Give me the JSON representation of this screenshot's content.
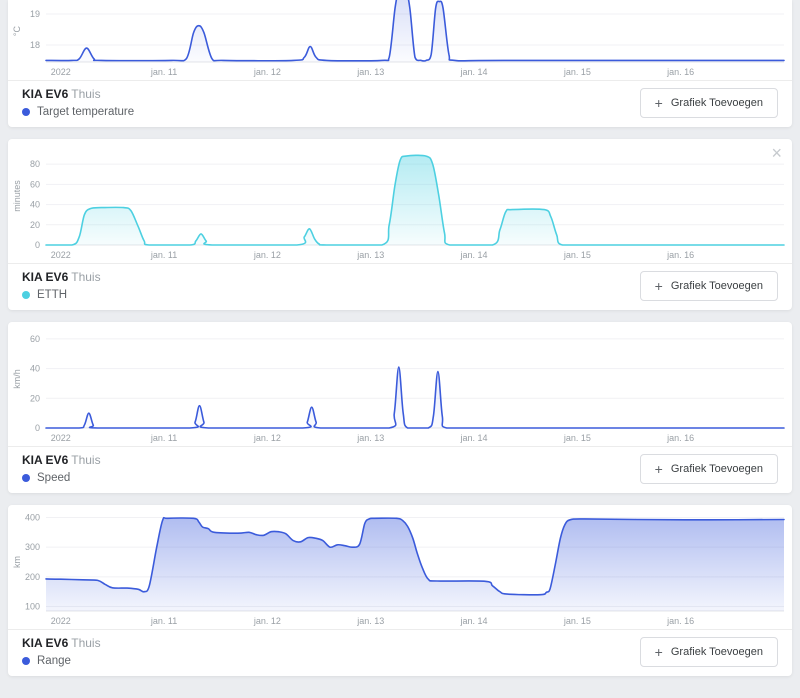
{
  "page": {
    "background": "#ebedf0",
    "card_background": "#ffffff"
  },
  "add_button": {
    "label": "Grafiek Toevoegen",
    "plus": "+"
  },
  "close_icon": "×",
  "panels": [
    {
      "entity": "KIA EV6",
      "area": "Thuis",
      "legend_label": "Target temperature",
      "color": "#3b5bdb",
      "clipped": true,
      "has_close": false,
      "chart_data": {
        "type": "area",
        "unit": "°C",
        "ylim": [
          17.45,
          19.45
        ],
        "yticks": [
          18,
          19
        ],
        "fill_top": 0.18,
        "fill_bottom": 0.02,
        "xticks": [
          {
            "pos": 0.02,
            "label": "2022"
          },
          {
            "pos": 0.16,
            "label": "jan. 11"
          },
          {
            "pos": 0.3,
            "label": "jan. 12"
          },
          {
            "pos": 0.44,
            "label": "jan. 13"
          },
          {
            "pos": 0.58,
            "label": "jan. 14"
          },
          {
            "pos": 0.72,
            "label": "jan. 15"
          },
          {
            "pos": 0.86,
            "label": "jan. 16"
          }
        ],
        "points": [
          [
            0,
            17.5
          ],
          [
            0.035,
            17.5
          ],
          [
            0.045,
            17.55
          ],
          [
            0.055,
            17.9
          ],
          [
            0.065,
            17.55
          ],
          [
            0.075,
            17.5
          ],
          [
            0.17,
            17.5
          ],
          [
            0.19,
            17.55
          ],
          [
            0.2,
            18.4
          ],
          [
            0.207,
            18.62
          ],
          [
            0.214,
            18.4
          ],
          [
            0.225,
            17.55
          ],
          [
            0.24,
            17.5
          ],
          [
            0.335,
            17.5
          ],
          [
            0.35,
            17.6
          ],
          [
            0.358,
            17.95
          ],
          [
            0.366,
            17.6
          ],
          [
            0.38,
            17.5
          ],
          [
            0.455,
            17.5
          ],
          [
            0.465,
            17.6
          ],
          [
            0.473,
            19.2
          ],
          [
            0.479,
            19.85
          ],
          [
            0.487,
            19.85
          ],
          [
            0.493,
            19.2
          ],
          [
            0.5,
            17.6
          ],
          [
            0.508,
            17.5
          ],
          [
            0.515,
            17.5
          ],
          [
            0.522,
            17.7
          ],
          [
            0.528,
            19.2
          ],
          [
            0.533,
            19.4
          ],
          [
            0.538,
            19.2
          ],
          [
            0.546,
            17.7
          ],
          [
            0.554,
            17.5
          ],
          [
            0.62,
            17.5
          ],
          [
            1,
            17.5
          ]
        ]
      }
    },
    {
      "entity": "KIA EV6",
      "area": "Thuis",
      "legend_label": "ETTH",
      "color": "#4dd0e1",
      "clipped": false,
      "has_close": true,
      "chart_data": {
        "type": "area",
        "unit": "minutes",
        "ylim": [
          0,
          97
        ],
        "yticks": [
          0,
          20,
          40,
          60,
          80
        ],
        "fill_top": 0.45,
        "fill_bottom": 0.05,
        "xticks": [
          {
            "pos": 0.02,
            "label": "2022"
          },
          {
            "pos": 0.16,
            "label": "jan. 11"
          },
          {
            "pos": 0.3,
            "label": "jan. 12"
          },
          {
            "pos": 0.44,
            "label": "jan. 13"
          },
          {
            "pos": 0.58,
            "label": "jan. 14"
          },
          {
            "pos": 0.72,
            "label": "jan. 15"
          },
          {
            "pos": 0.86,
            "label": "jan. 16"
          }
        ],
        "points": [
          [
            0,
            0
          ],
          [
            0.035,
            0
          ],
          [
            0.045,
            8
          ],
          [
            0.052,
            30
          ],
          [
            0.06,
            36
          ],
          [
            0.075,
            37
          ],
          [
            0.105,
            37
          ],
          [
            0.115,
            34
          ],
          [
            0.125,
            18
          ],
          [
            0.133,
            4
          ],
          [
            0.14,
            0
          ],
          [
            0.195,
            0
          ],
          [
            0.203,
            4
          ],
          [
            0.21,
            11
          ],
          [
            0.217,
            4
          ],
          [
            0.225,
            0
          ],
          [
            0.34,
            0
          ],
          [
            0.35,
            8
          ],
          [
            0.357,
            16
          ],
          [
            0.364,
            6
          ],
          [
            0.37,
            1
          ],
          [
            0.38,
            0
          ],
          [
            0.455,
            0
          ],
          [
            0.465,
            20
          ],
          [
            0.473,
            60
          ],
          [
            0.48,
            84
          ],
          [
            0.488,
            88
          ],
          [
            0.515,
            88
          ],
          [
            0.524,
            80
          ],
          [
            0.532,
            50
          ],
          [
            0.54,
            12
          ],
          [
            0.547,
            0
          ],
          [
            0.605,
            0
          ],
          [
            0.615,
            15
          ],
          [
            0.623,
            33
          ],
          [
            0.632,
            35
          ],
          [
            0.675,
            35
          ],
          [
            0.684,
            28
          ],
          [
            0.692,
            10
          ],
          [
            0.7,
            0
          ],
          [
            0.75,
            0
          ],
          [
            1,
            0
          ]
        ]
      }
    },
    {
      "entity": "KIA EV6",
      "area": "Thuis",
      "legend_label": "Speed",
      "color": "#3b5bdb",
      "clipped": false,
      "has_close": false,
      "chart_data": {
        "type": "area",
        "unit": "km/h",
        "ylim": [
          0,
          66
        ],
        "yticks": [
          0,
          20,
          40,
          60
        ],
        "fill_top": 0.2,
        "fill_bottom": 0.02,
        "xticks": [
          {
            "pos": 0.02,
            "label": "2022"
          },
          {
            "pos": 0.16,
            "label": "jan. 11"
          },
          {
            "pos": 0.3,
            "label": "jan. 12"
          },
          {
            "pos": 0.44,
            "label": "jan. 13"
          },
          {
            "pos": 0.58,
            "label": "jan. 14"
          },
          {
            "pos": 0.72,
            "label": "jan. 15"
          },
          {
            "pos": 0.86,
            "label": "jan. 16"
          }
        ],
        "points": [
          [
            0,
            0
          ],
          [
            0.045,
            0
          ],
          [
            0.052,
            2
          ],
          [
            0.058,
            10
          ],
          [
            0.064,
            2
          ],
          [
            0.07,
            0
          ],
          [
            0.195,
            0
          ],
          [
            0.202,
            4
          ],
          [
            0.208,
            15
          ],
          [
            0.214,
            4
          ],
          [
            0.22,
            0
          ],
          [
            0.348,
            0
          ],
          [
            0.354,
            4
          ],
          [
            0.36,
            14
          ],
          [
            0.366,
            4
          ],
          [
            0.372,
            0
          ],
          [
            0.465,
            0
          ],
          [
            0.472,
            10
          ],
          [
            0.478,
            41
          ],
          [
            0.484,
            10
          ],
          [
            0.49,
            0
          ],
          [
            0.518,
            0
          ],
          [
            0.525,
            8
          ],
          [
            0.531,
            38
          ],
          [
            0.537,
            8
          ],
          [
            0.543,
            0
          ],
          [
            0.6,
            0
          ],
          [
            1,
            0
          ]
        ]
      }
    },
    {
      "entity": "KIA EV6",
      "area": "Thuis",
      "legend_label": "Range",
      "color": "#3b5bdb",
      "clipped": false,
      "has_close": false,
      "chart_data": {
        "type": "area",
        "unit": "km",
        "ylim": [
          85,
          415
        ],
        "yticks": [
          100,
          200,
          300,
          400
        ],
        "fill_top": 0.42,
        "fill_bottom": 0.06,
        "xticks": [
          {
            "pos": 0.02,
            "label": "2022"
          },
          {
            "pos": 0.16,
            "label": "jan. 11"
          },
          {
            "pos": 0.3,
            "label": "jan. 12"
          },
          {
            "pos": 0.44,
            "label": "jan. 13"
          },
          {
            "pos": 0.58,
            "label": "jan. 14"
          },
          {
            "pos": 0.72,
            "label": "jan. 15"
          },
          {
            "pos": 0.86,
            "label": "jan. 16"
          }
        ],
        "points": [
          [
            0,
            193
          ],
          [
            0.02,
            192
          ],
          [
            0.05,
            190
          ],
          [
            0.07,
            188
          ],
          [
            0.08,
            175
          ],
          [
            0.09,
            163
          ],
          [
            0.11,
            162
          ],
          [
            0.125,
            158
          ],
          [
            0.133,
            150
          ],
          [
            0.14,
            170
          ],
          [
            0.15,
            300
          ],
          [
            0.158,
            390
          ],
          [
            0.165,
            397
          ],
          [
            0.2,
            397
          ],
          [
            0.207,
            385
          ],
          [
            0.212,
            368
          ],
          [
            0.22,
            362
          ],
          [
            0.228,
            350
          ],
          [
            0.26,
            347
          ],
          [
            0.275,
            350
          ],
          [
            0.285,
            342
          ],
          [
            0.295,
            340
          ],
          [
            0.305,
            352
          ],
          [
            0.315,
            352
          ],
          [
            0.325,
            345
          ],
          [
            0.335,
            322
          ],
          [
            0.345,
            318
          ],
          [
            0.355,
            332
          ],
          [
            0.365,
            330
          ],
          [
            0.375,
            322
          ],
          [
            0.385,
            300
          ],
          [
            0.395,
            308
          ],
          [
            0.405,
            305
          ],
          [
            0.415,
            300
          ],
          [
            0.425,
            310
          ],
          [
            0.432,
            380
          ],
          [
            0.438,
            395
          ],
          [
            0.445,
            397
          ],
          [
            0.475,
            397
          ],
          [
            0.483,
            390
          ],
          [
            0.49,
            370
          ],
          [
            0.497,
            330
          ],
          [
            0.503,
            280
          ],
          [
            0.51,
            230
          ],
          [
            0.518,
            192
          ],
          [
            0.53,
            186
          ],
          [
            0.595,
            185
          ],
          [
            0.605,
            170
          ],
          [
            0.615,
            150
          ],
          [
            0.625,
            142
          ],
          [
            0.67,
            140
          ],
          [
            0.678,
            148
          ],
          [
            0.683,
            160
          ],
          [
            0.69,
            240
          ],
          [
            0.697,
            330
          ],
          [
            0.703,
            375
          ],
          [
            0.71,
            392
          ],
          [
            0.73,
            395
          ],
          [
            0.8,
            393
          ],
          [
            0.9,
            392
          ],
          [
            1,
            393
          ]
        ]
      }
    }
  ]
}
